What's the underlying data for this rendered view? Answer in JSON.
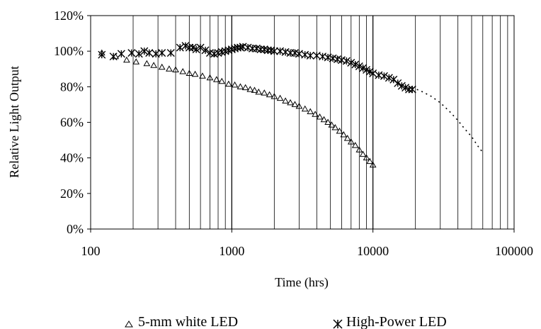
{
  "chart_data": {
    "type": "scatter",
    "title": "",
    "xlabel": "Time (hrs)",
    "ylabel": "Relative Light Output",
    "x_scale": "log",
    "xlim": [
      100,
      100000
    ],
    "ylim": [
      0,
      1.2
    ],
    "x_ticks": [
      "100",
      "1000",
      "10000",
      "100000"
    ],
    "y_ticks": [
      "0%",
      "20%",
      "40%",
      "60%",
      "80%",
      "100%",
      "120%"
    ],
    "grid": {
      "vertical": true,
      "horizontal": false
    },
    "legend_position": "bottom",
    "series": [
      {
        "name": "5-mm white LED",
        "marker": "triangle",
        "color": "#000000",
        "points": [
          [
            120,
            0.99
          ],
          [
            150,
            0.97
          ],
          [
            180,
            0.95
          ],
          [
            210,
            0.94
          ],
          [
            250,
            0.93
          ],
          [
            280,
            0.92
          ],
          [
            320,
            0.91
          ],
          [
            360,
            0.9
          ],
          [
            400,
            0.895
          ],
          [
            450,
            0.885
          ],
          [
            500,
            0.875
          ],
          [
            550,
            0.87
          ],
          [
            620,
            0.86
          ],
          [
            700,
            0.85
          ],
          [
            780,
            0.84
          ],
          [
            850,
            0.83
          ],
          [
            950,
            0.815
          ],
          [
            1050,
            0.81
          ],
          [
            1150,
            0.8
          ],
          [
            1250,
            0.795
          ],
          [
            1350,
            0.785
          ],
          [
            1450,
            0.78
          ],
          [
            1550,
            0.77
          ],
          [
            1700,
            0.765
          ],
          [
            1850,
            0.755
          ],
          [
            2000,
            0.745
          ],
          [
            2200,
            0.735
          ],
          [
            2400,
            0.72
          ],
          [
            2600,
            0.71
          ],
          [
            2800,
            0.7
          ],
          [
            3000,
            0.69
          ],
          [
            3300,
            0.675
          ],
          [
            3600,
            0.66
          ],
          [
            3900,
            0.645
          ],
          [
            4200,
            0.63
          ],
          [
            4500,
            0.615
          ],
          [
            4800,
            0.6
          ],
          [
            5100,
            0.585
          ],
          [
            5400,
            0.57
          ],
          [
            5800,
            0.55
          ],
          [
            6200,
            0.53
          ],
          [
            6600,
            0.51
          ],
          [
            7000,
            0.49
          ],
          [
            7500,
            0.47
          ],
          [
            8000,
            0.445
          ],
          [
            8500,
            0.42
          ],
          [
            9000,
            0.4
          ],
          [
            9500,
            0.38
          ],
          [
            10000,
            0.36
          ]
        ]
      },
      {
        "name": "High-Power LED",
        "marker": "asterisk",
        "color": "#000000",
        "points": [
          [
            120,
            0.98
          ],
          [
            145,
            0.97
          ],
          [
            165,
            0.985
          ],
          [
            195,
            0.99
          ],
          [
            220,
            0.985
          ],
          [
            240,
            1.0
          ],
          [
            260,
            0.99
          ],
          [
            290,
            0.985
          ],
          [
            320,
            0.99
          ],
          [
            370,
            0.99
          ],
          [
            430,
            1.02
          ],
          [
            470,
            1.03
          ],
          [
            500,
            1.02
          ],
          [
            530,
            1.02
          ],
          [
            560,
            1.01
          ],
          [
            600,
            1.02
          ],
          [
            650,
            1.005
          ],
          [
            700,
            0.99
          ],
          [
            750,
            0.985
          ],
          [
            800,
            0.99
          ],
          [
            850,
            0.995
          ],
          [
            900,
            1.0
          ],
          [
            950,
            1.005
          ],
          [
            1000,
            1.01
          ],
          [
            1050,
            1.015
          ],
          [
            1100,
            1.02
          ],
          [
            1150,
            1.02
          ],
          [
            1200,
            1.025
          ],
          [
            1300,
            1.02
          ],
          [
            1400,
            1.015
          ],
          [
            1500,
            1.015
          ],
          [
            1600,
            1.01
          ],
          [
            1700,
            1.01
          ],
          [
            1800,
            1.005
          ],
          [
            1900,
            1.005
          ],
          [
            2000,
            1.0
          ],
          [
            2200,
            1.0
          ],
          [
            2400,
            0.995
          ],
          [
            2600,
            0.99
          ],
          [
            2800,
            0.99
          ],
          [
            3000,
            0.985
          ],
          [
            3300,
            0.98
          ],
          [
            3600,
            0.975
          ],
          [
            4000,
            0.975
          ],
          [
            4400,
            0.97
          ],
          [
            4800,
            0.965
          ],
          [
            5200,
            0.96
          ],
          [
            5600,
            0.955
          ],
          [
            6000,
            0.95
          ],
          [
            6500,
            0.945
          ],
          [
            7000,
            0.935
          ],
          [
            7500,
            0.925
          ],
          [
            8000,
            0.915
          ],
          [
            8500,
            0.905
          ],
          [
            9000,
            0.895
          ],
          [
            9500,
            0.885
          ],
          [
            10000,
            0.875
          ],
          [
            11000,
            0.865
          ],
          [
            12000,
            0.86
          ],
          [
            13000,
            0.85
          ],
          [
            14000,
            0.84
          ],
          [
            15000,
            0.82
          ],
          [
            16000,
            0.805
          ],
          [
            17000,
            0.795
          ],
          [
            18000,
            0.785
          ],
          [
            19000,
            0.785
          ]
        ],
        "trend": [
          [
            19000,
            0.795
          ],
          [
            22000,
            0.775
          ],
          [
            26000,
            0.745
          ],
          [
            30000,
            0.71
          ],
          [
            35000,
            0.66
          ],
          [
            40000,
            0.61
          ],
          [
            45000,
            0.56
          ],
          [
            50000,
            0.52
          ],
          [
            55000,
            0.47
          ],
          [
            60000,
            0.43
          ]
        ]
      }
    ]
  }
}
